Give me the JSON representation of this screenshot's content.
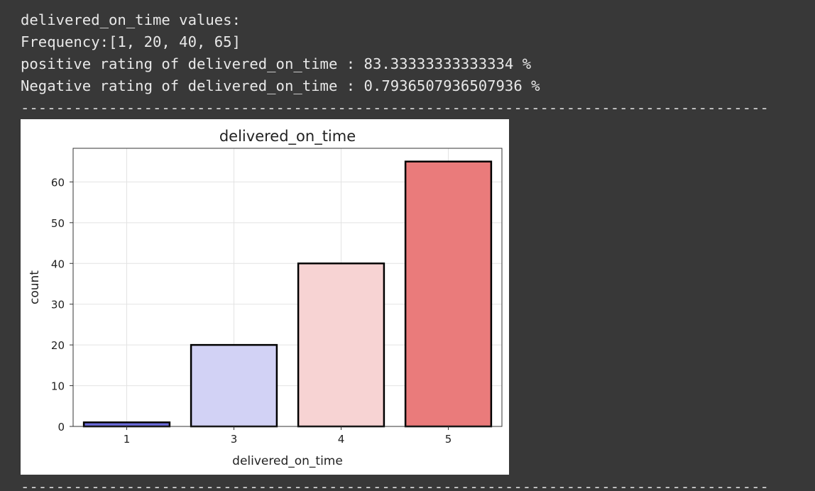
{
  "output": {
    "lines": [
      "delivered_on_time values:",
      "Frequency:[1, 20, 40, 65]",
      "positive rating of delivered_on_time : 83.33333333333334 %",
      "Negative rating of delivered_on_time : 0.7936507936507936 %"
    ],
    "separator": "------------------------------------------------------------------------------------------"
  },
  "chart_data": {
    "type": "bar",
    "title": "delivered_on_time",
    "xlabel": "delivered_on_time",
    "ylabel": "count",
    "categories": [
      "1",
      "3",
      "4",
      "5"
    ],
    "values": [
      1,
      20,
      40,
      65
    ],
    "colors": [
      "#6b6bdb",
      "#d2d2f5",
      "#f7d3d3",
      "#ea7b7b"
    ],
    "edge_color": "#000000",
    "ylim": [
      0,
      68.25
    ],
    "yticks": [
      0,
      10,
      20,
      30,
      40,
      50,
      60
    ],
    "grid": true
  }
}
